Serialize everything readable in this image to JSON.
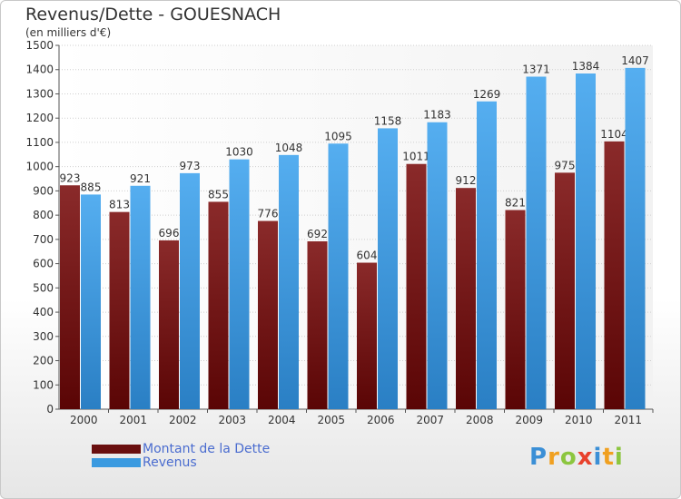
{
  "header": {
    "title": "Revenus/Dette - GOUESNACH",
    "subtitle": "(en milliers d'€)"
  },
  "chart_data": {
    "type": "bar",
    "title": "Revenus/Dette - GOUESNACH",
    "subtitle": "(en milliers d'€)",
    "categories": [
      "2000",
      "2001",
      "2002",
      "2003",
      "2004",
      "2005",
      "2006",
      "2007",
      "2008",
      "2009",
      "2010",
      "2011"
    ],
    "series": [
      {
        "name": "Montant de la Dette",
        "color": "#7a1e1e",
        "values": [
          923,
          813,
          696,
          855,
          776,
          692,
          604,
          1011,
          912,
          821,
          975,
          1104
        ],
        "labels": [
          "923",
          "813",
          "696",
          "855",
          "776",
          "692",
          "604",
          "1011",
          "912",
          "821",
          "975",
          "1104"
        ]
      },
      {
        "name": "Revenus",
        "color": "#3a9ae0",
        "values": [
          885,
          921,
          973,
          1030,
          1048,
          1095,
          1158,
          1183,
          1269,
          1371,
          1384,
          1407
        ],
        "labels": [
          "885",
          "921",
          "973",
          "1030",
          "1048",
          "1095",
          "1158",
          "1183",
          "1269",
          "1371",
          "1384",
          "1407"
        ]
      }
    ],
    "ylim": [
      0,
      1500
    ],
    "yticks": [
      0,
      100,
      200,
      300,
      400,
      500,
      600,
      700,
      800,
      900,
      1000,
      1100,
      1200,
      1300,
      1400,
      1500
    ],
    "grid": true,
    "legend": "bottom-left"
  },
  "legend": {
    "items": [
      {
        "label": "Montant de la Dette",
        "color": "#6a0f0f"
      },
      {
        "label": "Revenus",
        "color": "#3a9ae0"
      }
    ]
  },
  "logo": {
    "letters": [
      {
        "ch": "P",
        "color": "#3b8fd6"
      },
      {
        "ch": "r",
        "color": "#f0a020"
      },
      {
        "ch": "o",
        "color": "#8cc63f"
      },
      {
        "ch": "x",
        "color": "#e8412c"
      },
      {
        "ch": "i",
        "color": "#3b8fd6"
      },
      {
        "ch": "t",
        "color": "#f0a020"
      },
      {
        "ch": "i",
        "color": "#8cc63f"
      }
    ]
  }
}
